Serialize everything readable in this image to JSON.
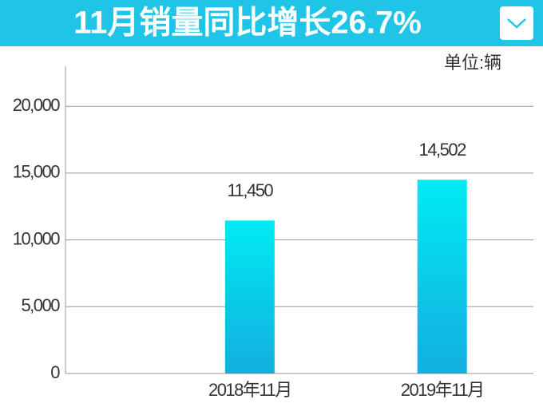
{
  "chart_data": {
    "type": "bar",
    "title": "11月销量同比增长26.7%",
    "unit": "单位:辆",
    "categories": [
      "2018年11月",
      "2019年11月"
    ],
    "values": [
      11450,
      14502
    ],
    "value_labels": [
      "11,450",
      "14,502"
    ],
    "gradient": [
      "#00ebf3",
      "#13aee0"
    ],
    "ylim": [
      0,
      23000
    ],
    "yticks": [
      0,
      {
        "value": 5000,
        "label": "5,000"
      },
      {
        "value": 10000,
        "label": "10,000"
      },
      {
        "value": 15000,
        "label": "15,000"
      },
      {
        "value": 20000,
        "label": "20,000"
      }
    ],
    "grid": true
  }
}
